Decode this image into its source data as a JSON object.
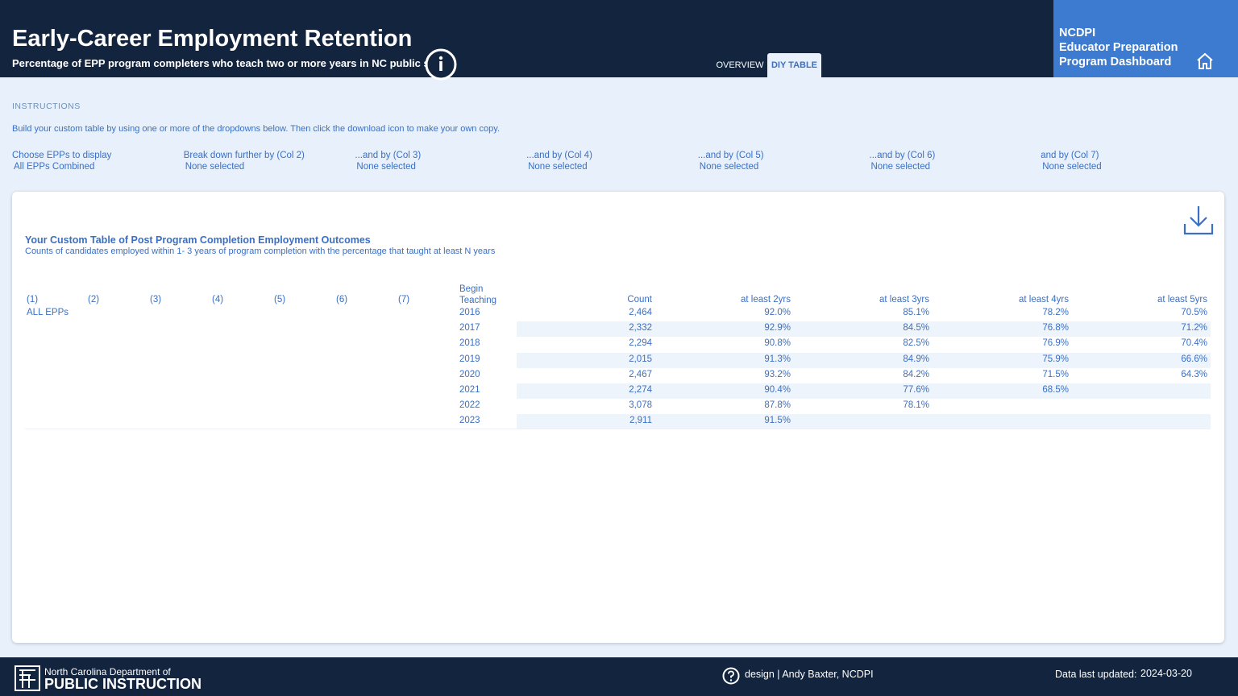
{
  "header": {
    "title": "Early-Career Employment Retention",
    "subtitle": "Percentage of EPP program completers who teach two or more years in NC public schools",
    "tabs": [
      "OVERVIEW",
      "DIY TABLE"
    ],
    "brand": [
      "NCDPI",
      "Educator Preparation",
      "Program Dashboard"
    ]
  },
  "instructions": {
    "label": "INSTRUCTIONS",
    "text": "Build your custom table by using one or more of the dropdowns below. Then click the download icon to make your own copy."
  },
  "filters": [
    {
      "label": "Choose EPPs to display",
      "value": "All EPPs Combined"
    },
    {
      "label": "Break down further by (Col 2)",
      "value": "None selected"
    },
    {
      "label": "...and by (Col 3)",
      "value": "None selected"
    },
    {
      "label": "...and by (Col 4)",
      "value": "None selected"
    },
    {
      "label": "...and by (Col 5)",
      "value": "None selected"
    },
    {
      "label": "...and by (Col 6)",
      "value": "None selected"
    },
    {
      "label": "and by (Col 7)",
      "value": "None selected"
    }
  ],
  "table": {
    "title": "Your Custom Table of Post Program Completion Employment Outcomes",
    "subtitle": "Counts of candidates employed within 1- 3 years of program completion with the percentage that taught at least N years",
    "columns": [
      "(1)",
      "(2)",
      "(3)",
      "(4)",
      "(5)",
      "(6)",
      "(7)",
      "Begin Teaching",
      "Count",
      "at least 2yrs",
      "at least 3yrs",
      "at least 4yrs",
      "at least 5yrs"
    ],
    "group": "ALL EPPs",
    "rows": [
      [
        "2016",
        "2,464",
        "92.0%",
        "85.1%",
        "78.2%",
        "70.5%"
      ],
      [
        "2017",
        "2,332",
        "92.9%",
        "84.5%",
        "76.8%",
        "71.2%"
      ],
      [
        "2018",
        "2,294",
        "90.8%",
        "82.5%",
        "76.9%",
        "70.4%"
      ],
      [
        "2019",
        "2,015",
        "91.3%",
        "84.9%",
        "75.9%",
        "66.6%"
      ],
      [
        "2020",
        "2,467",
        "93.2%",
        "84.2%",
        "71.5%",
        "64.3%"
      ],
      [
        "2021",
        "2,274",
        "90.4%",
        "77.6%",
        "68.5%"
      ],
      [
        "2022",
        "3,078",
        "87.8%",
        "78.1%"
      ],
      [
        "2023",
        "2,911",
        "91.5%"
      ]
    ]
  },
  "footer": {
    "org_line1": "North Carolina Department of",
    "org_line2": "PUBLIC INSTRUCTION",
    "credit": "design | Andy Baxter, NCDPI",
    "updated_label": "Data last updated:",
    "updated": "2024-03-20"
  }
}
